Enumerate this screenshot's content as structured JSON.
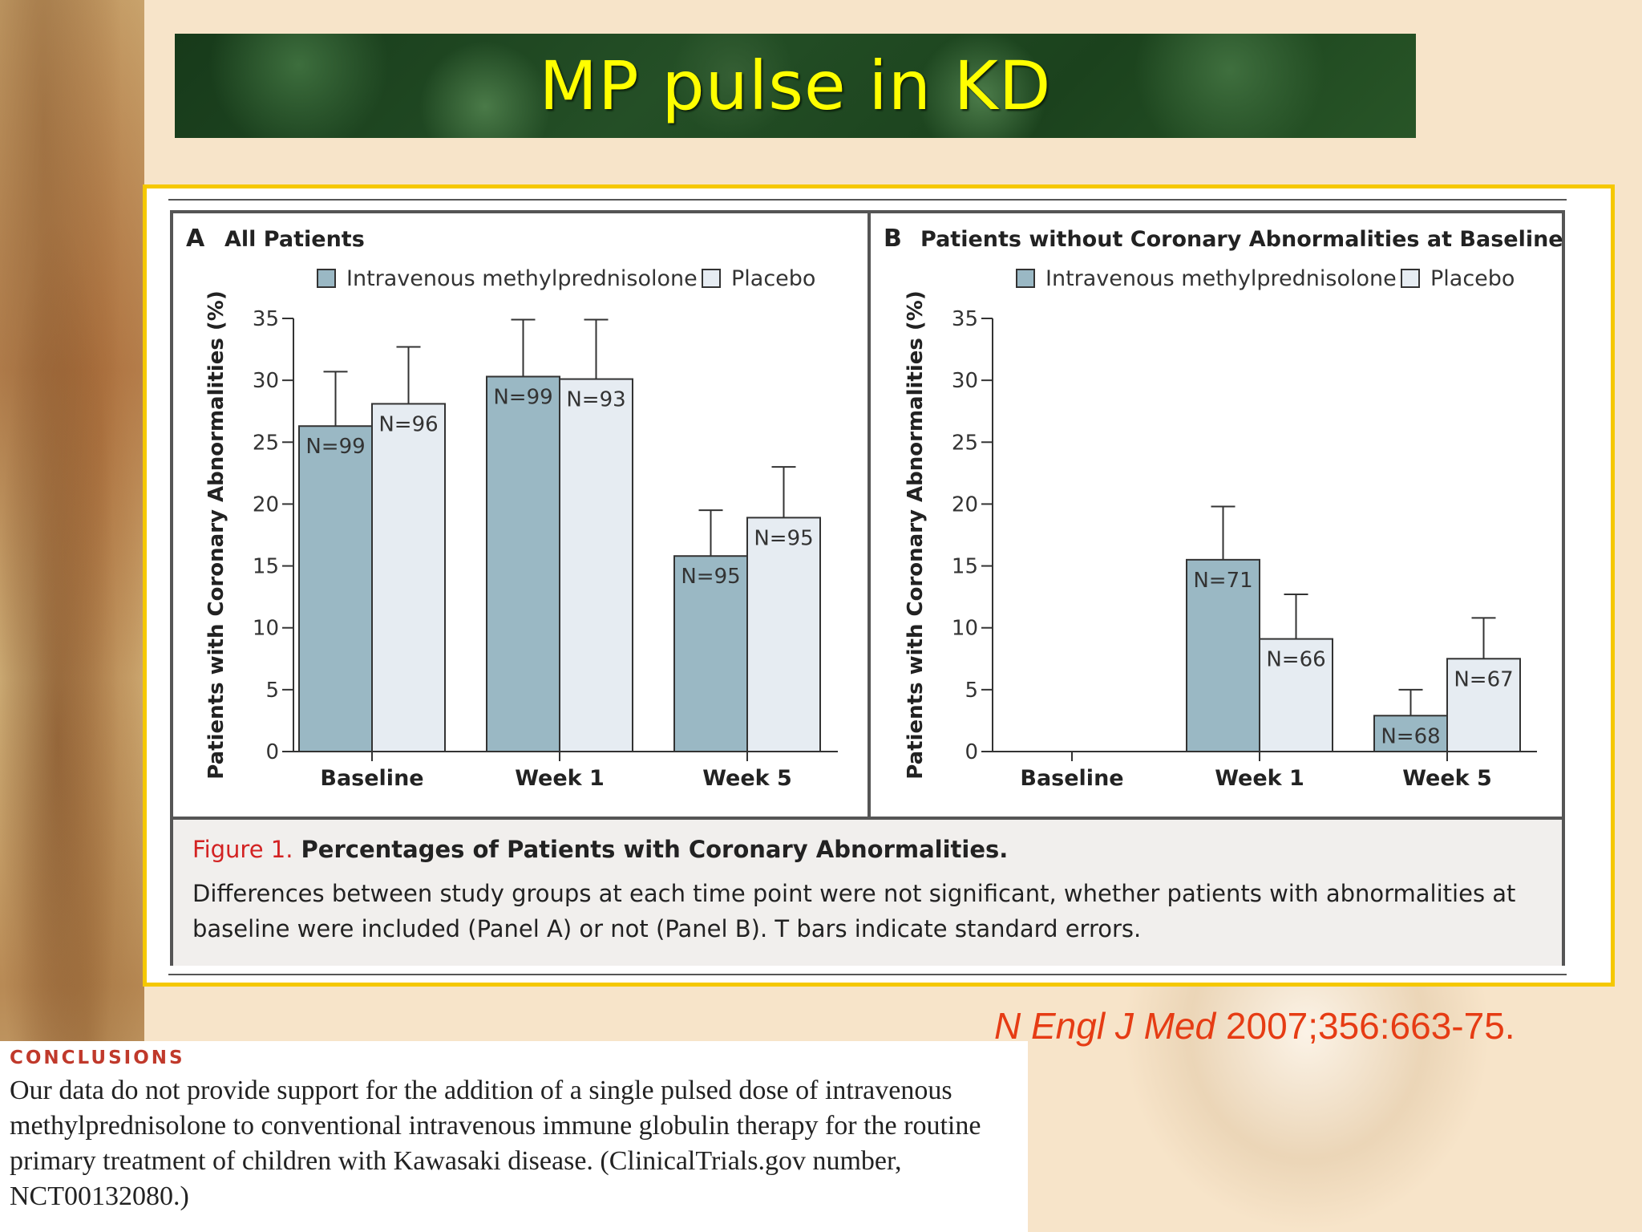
{
  "slide": {
    "title": "MP pulse in KD",
    "citation_journal": "N Engl J Med",
    "citation_rest": " 2007;356:663-75."
  },
  "figure": {
    "caption_label": "Figure 1.",
    "caption_title": "Percentages of Patients with Coronary Abnormalities.",
    "caption_body": "Differences between study groups at each time point were not significant, whether patients with abnormalities at baseline were included (Panel A) or not (Panel B). T bars indicate standard errors."
  },
  "legend": {
    "mp_label": "Intravenous methylprednisolone",
    "placebo_label": "Placebo"
  },
  "colors": {
    "mp": "#9ab8c4",
    "placebo": "#e6ecf2",
    "axis": "#333333",
    "accent": "#f5c800"
  },
  "conclusions": {
    "heading": "CONCLUSIONS",
    "text": "Our data do not provide support for the addition of a single pulsed dose of intravenous methylprednisolone to conventional intravenous immune globulin therapy for the routine primary treatment of children with Kawasaki disease. (ClinicalTrials.gov number, NCT00132080.)"
  },
  "chart_data": [
    {
      "type": "bar",
      "panel": "A",
      "title": "All Patients",
      "ylabel": "Patients with Coronary Abnormalities (%)",
      "ylim": [
        0,
        35
      ],
      "yticks": [
        0,
        5,
        10,
        15,
        20,
        25,
        30,
        35
      ],
      "categories": [
        "Baseline",
        "Week 1",
        "Week 5"
      ],
      "series": [
        {
          "name": "Intravenous methylprednisolone",
          "values": [
            26.3,
            30.3,
            15.8
          ],
          "errors": [
            4.4,
            4.6,
            3.7
          ],
          "n_labels": [
            "N=99",
            "N=99",
            "N=95"
          ]
        },
        {
          "name": "Placebo",
          "values": [
            28.1,
            30.1,
            18.9
          ],
          "errors": [
            4.6,
            4.8,
            4.1
          ],
          "n_labels": [
            "N=96",
            "N=93",
            "N=95"
          ]
        }
      ]
    },
    {
      "type": "bar",
      "panel": "B",
      "title": "Patients without Coronary Abnormalities at Baseline",
      "ylabel": "Patients with Coronary Abnormalities (%)",
      "ylim": [
        0,
        35
      ],
      "yticks": [
        0,
        5,
        10,
        15,
        20,
        25,
        30,
        35
      ],
      "categories": [
        "Baseline",
        "Week 1",
        "Week 5"
      ],
      "series": [
        {
          "name": "Intravenous methylprednisolone",
          "values": [
            null,
            15.5,
            2.9
          ],
          "errors": [
            null,
            4.3,
            2.1
          ],
          "n_labels": [
            "",
            "N=71",
            "N=68"
          ]
        },
        {
          "name": "Placebo",
          "values": [
            null,
            9.1,
            7.5
          ],
          "errors": [
            null,
            3.6,
            3.3
          ],
          "n_labels": [
            "",
            "N=66",
            "N=67"
          ]
        }
      ]
    }
  ]
}
